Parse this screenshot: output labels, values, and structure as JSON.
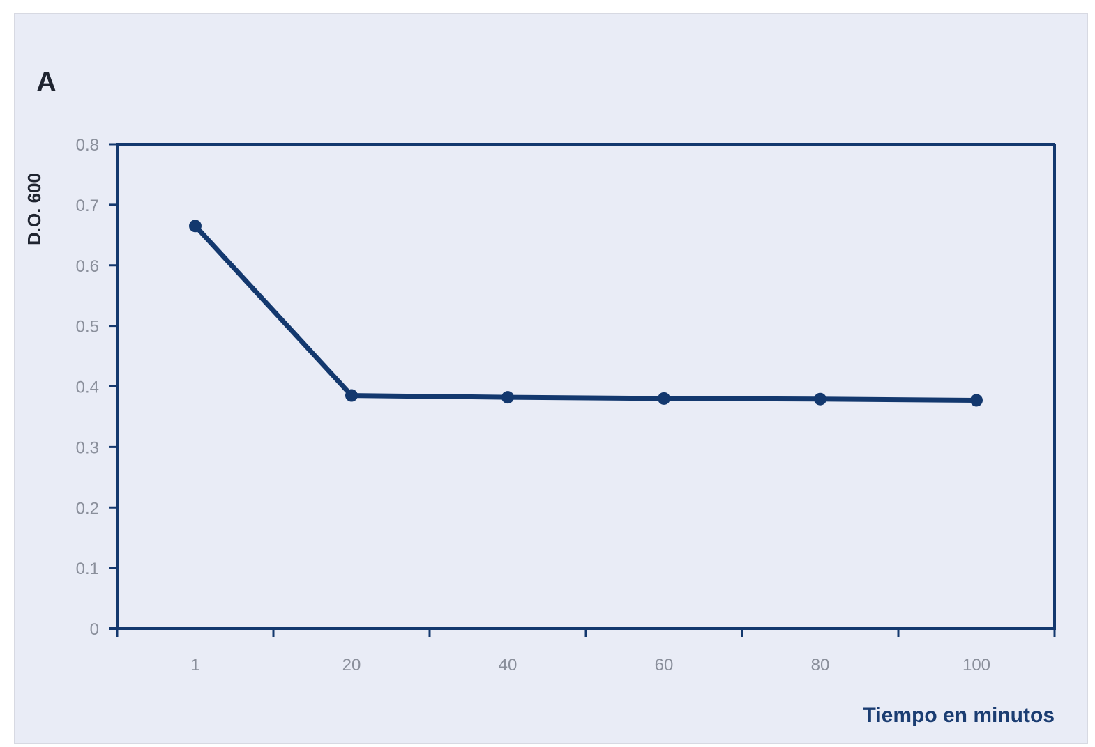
{
  "panel_label": "A",
  "colors": {
    "series": "#13386e",
    "axis": "#13386e",
    "background": "#e9ecf6"
  },
  "chart_data": {
    "type": "line",
    "title": "",
    "xlabel": "Tiempo en minutos",
    "ylabel": "D.O. 600",
    "x": [
      "1",
      "20",
      "40",
      "60",
      "80",
      "100"
    ],
    "series": [
      {
        "values": [
          0.665,
          0.385,
          0.382,
          0.38,
          0.379,
          0.377
        ]
      }
    ],
    "ylim": [
      0,
      0.8
    ],
    "yticks": [
      "0",
      "0.1",
      "0.2",
      "0.3",
      "0.4",
      "0.5",
      "0.6",
      "0.7",
      "0.8"
    ],
    "grid": false,
    "legend": "none"
  }
}
